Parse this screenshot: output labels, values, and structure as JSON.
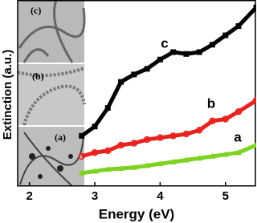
{
  "chart_data": {
    "type": "line",
    "xlabel": "Energy (eV)",
    "ylabel": "Extinction (a.u.)",
    "xlim": [
      1.82,
      5.47
    ],
    "xticks": [
      2,
      3,
      4,
      5
    ],
    "ylim": [
      0,
      10
    ],
    "x": [
      2.8,
      3.0,
      3.2,
      3.4,
      3.6,
      3.8,
      4.0,
      4.2,
      4.4,
      4.6,
      4.8,
      5.0,
      5.2,
      5.47
    ],
    "series": [
      {
        "name": "c",
        "color": "#000000",
        "marker": "square",
        "values": [
          2.7,
          3.2,
          4.2,
          5.6,
          6.0,
          6.3,
          6.8,
          7.2,
          7.1,
          7.2,
          7.6,
          8.1,
          8.6,
          9.6
        ]
      },
      {
        "name": "b",
        "color": "#e8231f",
        "marker": "circle",
        "values": [
          1.6,
          1.8,
          1.9,
          2.2,
          2.3,
          2.5,
          2.6,
          2.7,
          2.8,
          3.0,
          3.5,
          3.6,
          4.0,
          4.6
        ]
      },
      {
        "name": "a",
        "color": "#7ed321",
        "marker": "triangle",
        "values": [
          0.7,
          0.8,
          0.9,
          0.95,
          1.0,
          1.1,
          1.2,
          1.3,
          1.4,
          1.5,
          1.6,
          1.7,
          1.8,
          2.2
        ]
      }
    ],
    "insets": [
      "(c)",
      "(b)",
      "(a)"
    ]
  }
}
